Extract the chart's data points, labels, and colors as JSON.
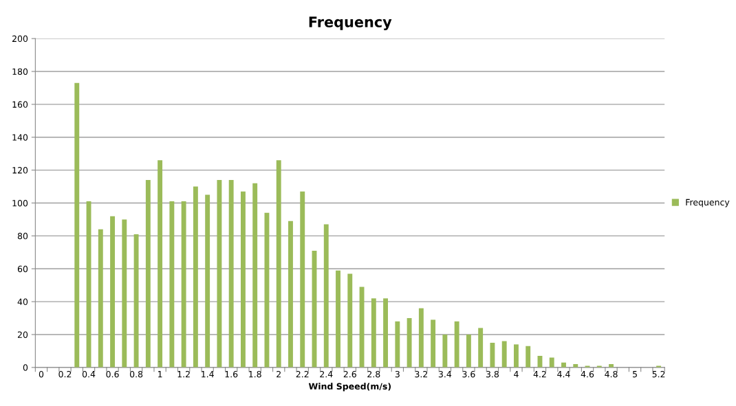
{
  "chart_data": {
    "type": "bar",
    "title": "Frequency",
    "xlabel": "Wind Speed(m/s)",
    "categories": [
      "0",
      null,
      "0.2",
      null,
      "0.4",
      null,
      "0.6",
      null,
      "0.8",
      null,
      "1",
      null,
      "1.2",
      null,
      "1.4",
      null,
      "1.6",
      null,
      "1.8",
      null,
      "2",
      null,
      "2.2",
      null,
      "2.4",
      null,
      "2.6",
      null,
      "2.8",
      null,
      "3",
      null,
      "3.2",
      null,
      "3.4",
      null,
      "3.6",
      null,
      "3.8",
      null,
      "4",
      null,
      "4.2",
      null,
      "4.4",
      null,
      "4.6",
      null,
      "4.8",
      null,
      "5",
      null,
      "5.2"
    ],
    "series": [
      {
        "name": "Frequency",
        "color": "#9bbb59",
        "values": [
          0,
          0,
          0,
          173,
          101,
          84,
          92,
          90,
          81,
          114,
          126,
          101,
          101,
          110,
          105,
          114,
          114,
          107,
          112,
          94,
          126,
          89,
          107,
          71,
          87,
          59,
          57,
          49,
          42,
          42,
          28,
          30,
          36,
          29,
          20,
          28,
          20,
          24,
          15,
          16,
          14,
          13,
          7,
          6,
          3,
          2,
          1,
          1,
          2,
          0,
          0,
          0,
          1
        ]
      }
    ],
    "ylim": [
      0,
      200
    ],
    "yticks": [
      0,
      20,
      40,
      60,
      80,
      100,
      120,
      140,
      160,
      180,
      200
    ],
    "grid": "y",
    "legend": "right"
  }
}
